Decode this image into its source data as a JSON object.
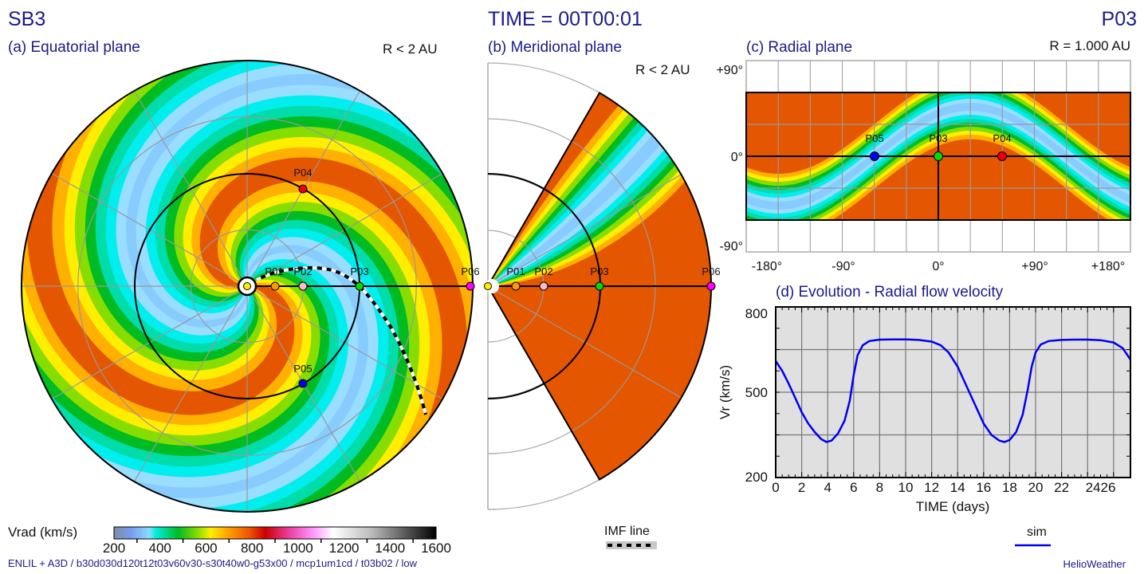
{
  "header": {
    "run_name": "SB3",
    "time_label": "TIME = 00T00:01",
    "probe_label": "P03"
  },
  "panels": {
    "equatorial": {
      "title": "(a) Equatorial plane",
      "range": "R < 2 AU"
    },
    "meridional": {
      "title": "(b) Meridional plane",
      "range": "R < 2 AU"
    },
    "radial": {
      "title": "(c) Radial plane",
      "range": "R = 1.000 AU",
      "y_ticks": [
        "+90°",
        "0°",
        "-90°"
      ],
      "x_ticks": [
        "-180°",
        "-90°",
        "0°",
        "+90°",
        "+180°"
      ]
    },
    "evolution": {
      "title": "(d) Evolution - Radial flow velocity"
    }
  },
  "probes": [
    {
      "id": "P01",
      "color": "#ff9900",
      "r_au": 0.25
    },
    {
      "id": "P02",
      "color": "#ffbbcc",
      "r_au": 0.5
    },
    {
      "id": "P03",
      "color": "#00dd00",
      "r_au": 1.0
    },
    {
      "id": "P04",
      "color": "#ee0000",
      "r_au": 1.0,
      "lon_deg": 60
    },
    {
      "id": "P05",
      "color": "#0000ee",
      "r_au": 1.0,
      "lon_deg": -60
    },
    {
      "id": "P06",
      "color": "#ff00ff",
      "r_au": 2.0
    }
  ],
  "colorbar": {
    "label": "Vrad (km/s)",
    "ticks": [
      "200",
      "400",
      "600",
      "800",
      "1000",
      "1200",
      "1400",
      "1600"
    ],
    "min": 200,
    "max": 1600
  },
  "legend": {
    "imf_label": "IMF line",
    "sim_label": "sim",
    "sim_color": "#0000ee"
  },
  "footer": {
    "run_info": "ENLIL + A3D / b30d030d120t12t03v60v30-s30t40w0-g53x00 / mcp1um1cd / t03b02 / low",
    "credit": "HelioWeather"
  },
  "chart_data": {
    "type": "line",
    "title": "(d) Evolution - Radial flow velocity",
    "xlabel": "TIME (days)",
    "ylabel": "Vr (km/s)",
    "xlim": [
      0,
      27.3
    ],
    "ylim": [
      200,
      800
    ],
    "x_tick_labels": [
      "0",
      "2",
      "4",
      "6",
      "8",
      "10",
      "12",
      "14",
      "16",
      "18",
      "20",
      "22",
      "2426"
    ],
    "y_tick_labels": [
      "800",
      "500",
      "200"
    ],
    "grid": true,
    "legend": "bottom-right",
    "series": [
      {
        "name": "sim",
        "x": [
          0,
          0.5,
          1,
          1.5,
          2,
          2.5,
          3,
          3.5,
          3.9,
          4.3,
          4.8,
          5.3,
          5.7,
          6.0,
          6.3,
          6.7,
          7.2,
          8,
          9,
          10,
          11,
          12,
          12.7,
          13.3,
          14,
          14.7,
          15.4,
          16,
          16.6,
          17.2,
          17.6,
          18.0,
          18.5,
          19.0,
          19.4,
          19.7,
          20.0,
          20.4,
          21,
          22,
          23,
          24,
          25,
          26,
          26.7,
          27.3
        ],
        "y": [
          610,
          575,
          530,
          480,
          430,
          390,
          360,
          335,
          325,
          330,
          355,
          400,
          470,
          560,
          630,
          665,
          680,
          685,
          686,
          686,
          684,
          678,
          665,
          640,
          590,
          520,
          450,
          390,
          350,
          330,
          325,
          332,
          360,
          420,
          510,
          590,
          640,
          668,
          680,
          684,
          685,
          685,
          683,
          675,
          655,
          615
        ]
      }
    ]
  }
}
